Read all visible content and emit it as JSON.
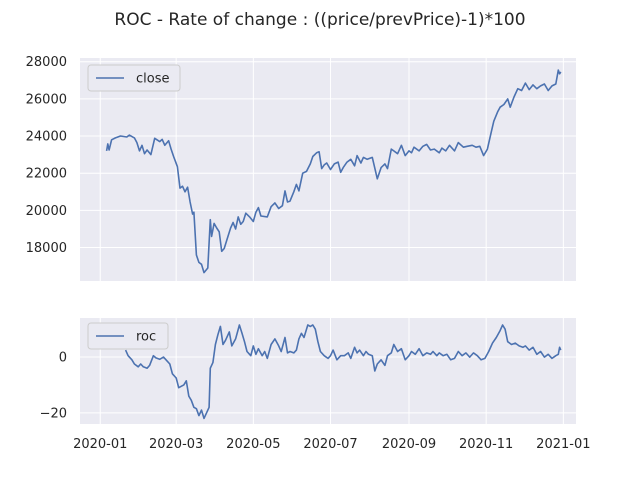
{
  "figure": {
    "suptitle": "ROC - Rate of change : ((price/prevPrice)-1)*100"
  },
  "colors": {
    "line": "#4c72b0",
    "axes_bg": "#eaeaf2",
    "grid": "#ffffff",
    "text": "#262626"
  },
  "chart_data": [
    {
      "type": "line",
      "series": [
        {
          "name": "close"
        }
      ],
      "ylim": [
        16200,
        28200
      ],
      "yticks": [
        18000,
        20000,
        22000,
        24000,
        26000,
        28000
      ],
      "ytick_labels": [
        "18000",
        "20000",
        "22000",
        "24000",
        "26000",
        "28000"
      ],
      "xlim": [
        "2019-12-16",
        "2021-01-11"
      ],
      "grid": true,
      "legend": "upper left",
      "points": [
        [
          "2020-01-06",
          23200
        ],
        [
          "2020-01-07",
          23580
        ],
        [
          "2020-01-08",
          23250
        ],
        [
          "2020-01-10",
          23800
        ],
        [
          "2020-01-13",
          23900
        ],
        [
          "2020-01-17",
          24000
        ],
        [
          "2020-01-22",
          23950
        ],
        [
          "2020-01-24",
          24050
        ],
        [
          "2020-01-28",
          23900
        ],
        [
          "2020-01-30",
          23650
        ],
        [
          "2020-02-01",
          23200
        ],
        [
          "2020-02-03",
          23500
        ],
        [
          "2020-02-05",
          23050
        ],
        [
          "2020-02-07",
          23250
        ],
        [
          "2020-02-10",
          23000
        ],
        [
          "2020-02-13",
          23880
        ],
        [
          "2020-02-17",
          23700
        ],
        [
          "2020-02-19",
          23820
        ],
        [
          "2020-02-21",
          23500
        ],
        [
          "2020-02-24",
          23750
        ],
        [
          "2020-02-26",
          23300
        ],
        [
          "2020-02-28",
          22900
        ],
        [
          "2020-03-02",
          22350
        ],
        [
          "2020-03-04",
          21200
        ],
        [
          "2020-03-06",
          21300
        ],
        [
          "2020-03-08",
          21000
        ],
        [
          "2020-03-10",
          21250
        ],
        [
          "2020-03-12",
          20450
        ],
        [
          "2020-03-14",
          19800
        ],
        [
          "2020-03-15",
          19900
        ],
        [
          "2020-03-17",
          17600
        ],
        [
          "2020-03-19",
          17200
        ],
        [
          "2020-03-21",
          17100
        ],
        [
          "2020-03-23",
          16650
        ],
        [
          "2020-03-26",
          16900
        ],
        [
          "2020-03-28",
          19500
        ],
        [
          "2020-03-29",
          18600
        ],
        [
          "2020-03-31",
          19300
        ],
        [
          "2020-04-02",
          19050
        ],
        [
          "2020-04-04",
          18850
        ],
        [
          "2020-04-06",
          17800
        ],
        [
          "2020-04-08",
          17950
        ],
        [
          "2020-04-10",
          18400
        ],
        [
          "2020-04-13",
          19050
        ],
        [
          "2020-04-15",
          19350
        ],
        [
          "2020-04-17",
          19000
        ],
        [
          "2020-04-19",
          19650
        ],
        [
          "2020-04-21",
          19250
        ],
        [
          "2020-04-23",
          19400
        ],
        [
          "2020-04-25",
          19850
        ],
        [
          "2020-04-28",
          19650
        ],
        [
          "2020-05-01",
          19400
        ],
        [
          "2020-05-03",
          19900
        ],
        [
          "2020-05-05",
          20150
        ],
        [
          "2020-05-07",
          19700
        ],
        [
          "2020-05-12",
          19650
        ],
        [
          "2020-05-15",
          20200
        ],
        [
          "2020-05-18",
          20400
        ],
        [
          "2020-05-21",
          20100
        ],
        [
          "2020-05-24",
          20250
        ],
        [
          "2020-05-26",
          21050
        ],
        [
          "2020-05-28",
          20450
        ],
        [
          "2020-05-30",
          20500
        ],
        [
          "2020-06-02",
          21000
        ],
        [
          "2020-06-04",
          21400
        ],
        [
          "2020-06-06",
          21050
        ],
        [
          "2020-06-09",
          22000
        ],
        [
          "2020-06-12",
          22100
        ],
        [
          "2020-06-15",
          22500
        ],
        [
          "2020-06-17",
          22900
        ],
        [
          "2020-06-20",
          23100
        ],
        [
          "2020-06-22",
          23150
        ],
        [
          "2020-06-24",
          22250
        ],
        [
          "2020-06-26",
          22450
        ],
        [
          "2020-06-28",
          22550
        ],
        [
          "2020-07-01",
          22200
        ],
        [
          "2020-07-04",
          22500
        ],
        [
          "2020-07-07",
          22600
        ],
        [
          "2020-07-09",
          22050
        ],
        [
          "2020-07-11",
          22300
        ],
        [
          "2020-07-14",
          22600
        ],
        [
          "2020-07-17",
          22750
        ],
        [
          "2020-07-20",
          22400
        ],
        [
          "2020-07-22",
          22950
        ],
        [
          "2020-07-25",
          22550
        ],
        [
          "2020-07-27",
          22850
        ],
        [
          "2020-07-30",
          22750
        ],
        [
          "2020-08-03",
          22850
        ],
        [
          "2020-08-07",
          21700
        ],
        [
          "2020-08-10",
          22300
        ],
        [
          "2020-08-13",
          22500
        ],
        [
          "2020-08-15",
          22250
        ],
        [
          "2020-08-18",
          23300
        ],
        [
          "2020-08-20",
          23200
        ],
        [
          "2020-08-23",
          23050
        ],
        [
          "2020-08-26",
          23500
        ],
        [
          "2020-08-29",
          22950
        ],
        [
          "2020-09-01",
          23200
        ],
        [
          "2020-09-03",
          23100
        ],
        [
          "2020-09-05",
          23400
        ],
        [
          "2020-09-09",
          23200
        ],
        [
          "2020-09-12",
          23450
        ],
        [
          "2020-09-15",
          23550
        ],
        [
          "2020-09-18",
          23250
        ],
        [
          "2020-09-21",
          23300
        ],
        [
          "2020-09-25",
          23100
        ],
        [
          "2020-09-27",
          23350
        ],
        [
          "2020-09-30",
          23200
        ],
        [
          "2020-10-03",
          23500
        ],
        [
          "2020-10-07",
          23200
        ],
        [
          "2020-10-10",
          23650
        ],
        [
          "2020-10-14",
          23400
        ],
        [
          "2020-10-17",
          23450
        ],
        [
          "2020-10-21",
          23500
        ],
        [
          "2020-10-24",
          23400
        ],
        [
          "2020-10-27",
          23450
        ],
        [
          "2020-10-30",
          22950
        ],
        [
          "2020-11-02",
          23300
        ],
        [
          "2020-11-05",
          24200
        ],
        [
          "2020-11-07",
          24800
        ],
        [
          "2020-11-10",
          25300
        ],
        [
          "2020-11-12",
          25550
        ],
        [
          "2020-11-15",
          25700
        ],
        [
          "2020-11-18",
          26000
        ],
        [
          "2020-11-20",
          25550
        ],
        [
          "2020-11-23",
          26100
        ],
        [
          "2020-11-26",
          26550
        ],
        [
          "2020-11-29",
          26450
        ],
        [
          "2020-12-02",
          26850
        ],
        [
          "2020-12-05",
          26500
        ],
        [
          "2020-12-08",
          26750
        ],
        [
          "2020-12-11",
          26550
        ],
        [
          "2020-12-14",
          26700
        ],
        [
          "2020-12-17",
          26800
        ],
        [
          "2020-12-20",
          26450
        ],
        [
          "2020-12-23",
          26700
        ],
        [
          "2020-12-26",
          26800
        ],
        [
          "2020-12-28",
          27550
        ],
        [
          "2020-12-29",
          27350
        ],
        [
          "2020-12-30",
          27450
        ]
      ]
    },
    {
      "type": "line",
      "series": [
        {
          "name": "roc"
        }
      ],
      "ylim": [
        -24,
        14
      ],
      "yticks": [
        -20,
        0
      ],
      "ytick_labels": [
        "−20",
        "0"
      ],
      "xlim": [
        "2019-12-16",
        "2021-01-11"
      ],
      "xticks": [
        "2020-01-01",
        "2020-03-01",
        "2020-05-01",
        "2020-07-01",
        "2020-09-01",
        "2020-11-01",
        "2021-01-01"
      ],
      "xtick_labels": [
        "2020-01",
        "2020-03",
        "2020-05",
        "2020-07",
        "2020-09",
        "2020-11",
        "2021-01"
      ],
      "grid": true,
      "legend": "upper left",
      "points": [
        [
          "2020-01-21",
          2.5
        ],
        [
          "2020-01-23",
          0.5
        ],
        [
          "2020-01-26",
          -1.0
        ],
        [
          "2020-01-28",
          -2.5
        ],
        [
          "2020-01-31",
          -3.5
        ],
        [
          "2020-02-02",
          -2.5
        ],
        [
          "2020-02-04",
          -3.5
        ],
        [
          "2020-02-07",
          -4.0
        ],
        [
          "2020-02-09",
          -3.0
        ],
        [
          "2020-02-12",
          0.5
        ],
        [
          "2020-02-14",
          -0.3
        ],
        [
          "2020-02-17",
          -0.8
        ],
        [
          "2020-02-20",
          0.0
        ],
        [
          "2020-02-22",
          -1.0
        ],
        [
          "2020-02-25",
          -2.5
        ],
        [
          "2020-02-27",
          -6.0
        ],
        [
          "2020-03-01",
          -7.5
        ],
        [
          "2020-03-03",
          -11.0
        ],
        [
          "2020-03-05",
          -10.5
        ],
        [
          "2020-03-07",
          -10.0
        ],
        [
          "2020-03-09",
          -8.5
        ],
        [
          "2020-03-11",
          -14.0
        ],
        [
          "2020-03-13",
          -15.5
        ],
        [
          "2020-03-15",
          -18.0
        ],
        [
          "2020-03-17",
          -18.5
        ],
        [
          "2020-03-19",
          -21.0
        ],
        [
          "2020-03-21",
          -19.0
        ],
        [
          "2020-03-23",
          -22.0
        ],
        [
          "2020-03-27",
          -18.0
        ],
        [
          "2020-03-28",
          -4.0
        ],
        [
          "2020-03-30",
          -2.0
        ],
        [
          "2020-04-01",
          4.5
        ],
        [
          "2020-04-03",
          8.0
        ],
        [
          "2020-04-05",
          11.0
        ],
        [
          "2020-04-07",
          4.5
        ],
        [
          "2020-04-09",
          6.0
        ],
        [
          "2020-04-12",
          9.0
        ],
        [
          "2020-04-14",
          4.0
        ],
        [
          "2020-04-17",
          6.5
        ],
        [
          "2020-04-20",
          11.5
        ],
        [
          "2020-04-22",
          8.5
        ],
        [
          "2020-04-24",
          5.5
        ],
        [
          "2020-04-26",
          2.0
        ],
        [
          "2020-04-29",
          0.5
        ],
        [
          "2020-05-01",
          4.0
        ],
        [
          "2020-05-03",
          1.0
        ],
        [
          "2020-05-05",
          3.0
        ],
        [
          "2020-05-08",
          0.5
        ],
        [
          "2020-05-10",
          2.0
        ],
        [
          "2020-05-12",
          -0.5
        ],
        [
          "2020-05-15",
          4.5
        ],
        [
          "2020-05-18",
          6.5
        ],
        [
          "2020-05-21",
          4.0
        ],
        [
          "2020-05-23",
          2.0
        ],
        [
          "2020-05-26",
          7.0
        ],
        [
          "2020-05-28",
          1.5
        ],
        [
          "2020-05-30",
          2.0
        ],
        [
          "2020-06-02",
          1.5
        ],
        [
          "2020-06-04",
          2.5
        ],
        [
          "2020-06-06",
          6.5
        ],
        [
          "2020-06-08",
          8.5
        ],
        [
          "2020-06-10",
          7.0
        ],
        [
          "2020-06-13",
          11.5
        ],
        [
          "2020-06-15",
          11.0
        ],
        [
          "2020-06-17",
          11.5
        ],
        [
          "2020-06-19",
          10.0
        ],
        [
          "2020-06-21",
          5.5
        ],
        [
          "2020-06-23",
          2.0
        ],
        [
          "2020-06-26",
          0.5
        ],
        [
          "2020-06-29",
          -0.5
        ],
        [
          "2020-07-01",
          0.5
        ],
        [
          "2020-07-03",
          2.5
        ],
        [
          "2020-07-06",
          -1.0
        ],
        [
          "2020-07-09",
          0.5
        ],
        [
          "2020-07-12",
          0.5
        ],
        [
          "2020-07-15",
          1.5
        ],
        [
          "2020-07-17",
          -0.5
        ],
        [
          "2020-07-20",
          3.5
        ],
        [
          "2020-07-22",
          1.5
        ],
        [
          "2020-07-24",
          2.5
        ],
        [
          "2020-07-27",
          0.5
        ],
        [
          "2020-07-29",
          2.0
        ],
        [
          "2020-07-31",
          1.0
        ],
        [
          "2020-08-03",
          0.5
        ],
        [
          "2020-08-05",
          -5.0
        ],
        [
          "2020-08-07",
          -2.5
        ],
        [
          "2020-08-10",
          -1.0
        ],
        [
          "2020-08-13",
          -3.0
        ],
        [
          "2020-08-15",
          0.5
        ],
        [
          "2020-08-18",
          1.5
        ],
        [
          "2020-08-20",
          4.5
        ],
        [
          "2020-08-23",
          2.0
        ],
        [
          "2020-08-26",
          3.0
        ],
        [
          "2020-08-29",
          -1.0
        ],
        [
          "2020-09-01",
          0.5
        ],
        [
          "2020-09-03",
          2.0
        ],
        [
          "2020-09-06",
          1.0
        ],
        [
          "2020-09-09",
          3.0
        ],
        [
          "2020-09-12",
          0.5
        ],
        [
          "2020-09-15",
          1.5
        ],
        [
          "2020-09-18",
          1.0
        ],
        [
          "2020-09-20",
          2.0
        ],
        [
          "2020-09-23",
          0.5
        ],
        [
          "2020-09-25",
          1.5
        ],
        [
          "2020-09-28",
          0.5
        ],
        [
          "2020-10-01",
          1.0
        ],
        [
          "2020-10-04",
          -1.0
        ],
        [
          "2020-10-07",
          -0.5
        ],
        [
          "2020-10-10",
          2.0
        ],
        [
          "2020-10-13",
          0.5
        ],
        [
          "2020-10-16",
          1.5
        ],
        [
          "2020-10-19",
          0.0
        ],
        [
          "2020-10-22",
          1.5
        ],
        [
          "2020-10-25",
          0.5
        ],
        [
          "2020-10-28",
          -1.0
        ],
        [
          "2020-10-31",
          -0.5
        ],
        [
          "2020-11-03",
          2.0
        ],
        [
          "2020-11-06",
          5.0
        ],
        [
          "2020-11-09",
          7.0
        ],
        [
          "2020-11-12",
          9.5
        ],
        [
          "2020-11-14",
          11.5
        ],
        [
          "2020-11-16",
          10.0
        ],
        [
          "2020-11-18",
          5.5
        ],
        [
          "2020-11-21",
          4.5
        ],
        [
          "2020-11-24",
          5.0
        ],
        [
          "2020-11-27",
          4.0
        ],
        [
          "2020-11-30",
          3.5
        ],
        [
          "2020-12-02",
          4.0
        ],
        [
          "2020-12-05",
          2.5
        ],
        [
          "2020-12-08",
          3.5
        ],
        [
          "2020-12-11",
          1.0
        ],
        [
          "2020-12-14",
          2.0
        ],
        [
          "2020-12-17",
          0.0
        ],
        [
          "2020-12-20",
          1.0
        ],
        [
          "2020-12-23",
          -0.5
        ],
        [
          "2020-12-26",
          0.5
        ],
        [
          "2020-12-28",
          1.0
        ],
        [
          "2020-12-29",
          3.5
        ],
        [
          "2020-12-30",
          2.5
        ]
      ]
    }
  ]
}
